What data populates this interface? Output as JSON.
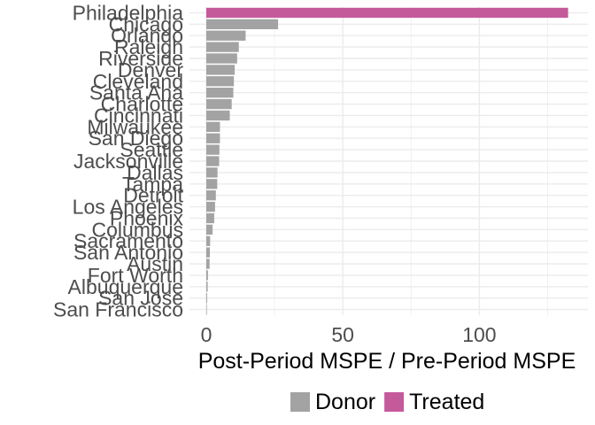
{
  "chart_data": {
    "type": "bar",
    "orientation": "horizontal",
    "title": "",
    "xlabel": "Post-Period MSPE / Pre-Period MSPE",
    "ylabel": "",
    "xlim": [
      0,
      141
    ],
    "xticks": [
      0,
      50,
      100
    ],
    "grid": true,
    "legend_position": "bottom",
    "categories": [
      "Philadelphia",
      "Chicago",
      "Orlando",
      "Raleigh",
      "Riverside",
      "Denver",
      "Cleveland",
      "Santa Ana",
      "Charlotte",
      "Cincinnati",
      "Milwaukee",
      "San Diego",
      "Seattle",
      "Jacksonville",
      "Dallas",
      "Tampa",
      "Detroit",
      "Los Angeles",
      "Phoenix",
      "Columbus",
      "Sacramento",
      "San Antonio",
      "Austin",
      "Fort Worth",
      "Albuquerque",
      "San Jose",
      "San Francisco"
    ],
    "values": [
      132.5,
      26.3,
      14.4,
      11.9,
      11.3,
      10.4,
      10.1,
      9.9,
      9.3,
      8.6,
      5.0,
      5.0,
      4.8,
      4.7,
      4.1,
      4.0,
      3.5,
      3.2,
      2.9,
      2.3,
      1.4,
      1.3,
      1.2,
      0.6,
      0.5,
      0.3,
      0.2
    ],
    "groups": [
      "Treated",
      "Donor",
      "Donor",
      "Donor",
      "Donor",
      "Donor",
      "Donor",
      "Donor",
      "Donor",
      "Donor",
      "Donor",
      "Donor",
      "Donor",
      "Donor",
      "Donor",
      "Donor",
      "Donor",
      "Donor",
      "Donor",
      "Donor",
      "Donor",
      "Donor",
      "Donor",
      "Donor",
      "Donor",
      "Donor",
      "Donor"
    ],
    "legend": [
      {
        "name": "Donor",
        "color": "#A3A3A3"
      },
      {
        "name": "Treated",
        "color": "#C55A9B"
      }
    ]
  }
}
